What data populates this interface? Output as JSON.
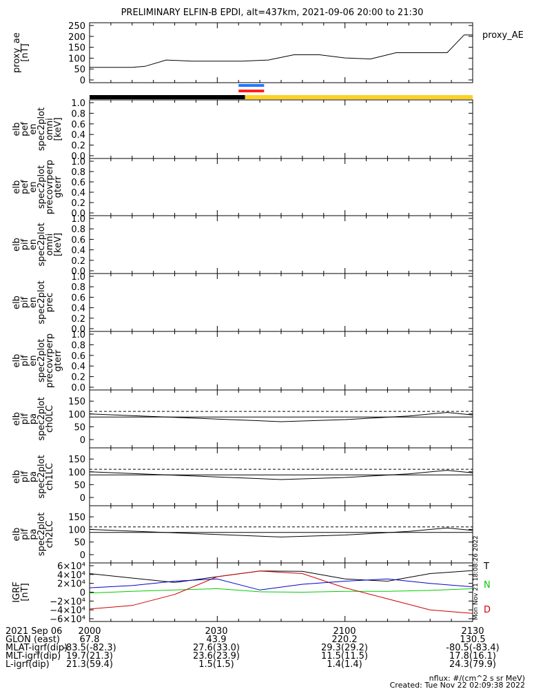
{
  "title": "PRELIMINARY ELFIN-B EPDI, alt=437km, 2021-09-06 20:00 to 21:30",
  "colors": {
    "black": "#000000",
    "sun": "#ffd21e",
    "blue_bar": "#1e78ff",
    "red_bar": "#ff1e1e",
    "grf_t": "#000000",
    "grf_n": "#00cc00",
    "grf_d": "#cc0000",
    "grf_e": "#0000cc"
  },
  "panels": [
    {
      "id": "proxy_ae",
      "ylabel_lines": [
        "proxy_ae",
        "[nT]"
      ],
      "yticks": [
        "250",
        "200",
        "150",
        "100",
        "50",
        "0"
      ],
      "legend": "proxy_AE"
    },
    {
      "id": "pef_en",
      "ylabel_lines": [
        "elb",
        "pef",
        "en",
        "spec2plot",
        "omni",
        "[keV]"
      ],
      "yticks": [
        "1.0",
        "0.8",
        "0.6",
        "0.4",
        "0.2",
        "0.0"
      ]
    },
    {
      "id": "pef_prec",
      "ylabel_lines": [
        "elb",
        "pef",
        "en",
        "spec2plot",
        "precovrperp",
        "gterr"
      ],
      "yticks": [
        "1.0",
        "0.8",
        "0.6",
        "0.4",
        "0.2",
        "0.0"
      ]
    },
    {
      "id": "pif_en",
      "ylabel_lines": [
        "elb",
        "pif",
        "en",
        "spec2plot",
        "omni",
        "[keV]"
      ],
      "yticks": [
        "1.0",
        "0.8",
        "0.6",
        "0.4",
        "0.2",
        "0.0"
      ]
    },
    {
      "id": "pif_prec",
      "ylabel_lines": [
        "elb",
        "pif",
        "en",
        "spec2plot",
        "prec"
      ],
      "yticks": [
        "1.0",
        "0.8",
        "0.6",
        "0.4",
        "0.2",
        "0.0"
      ]
    },
    {
      "id": "pif_precovr",
      "ylabel_lines": [
        "elb",
        "pif",
        "en",
        "spec2plot",
        "precovrperp",
        "gterr"
      ],
      "yticks": [
        "1.0",
        "0.8",
        "0.6",
        "0.4",
        "0.2",
        "0.0"
      ]
    },
    {
      "id": "ch0lc",
      "ylabel_lines": [
        "elb",
        "pif",
        "pa",
        "spec2plot",
        "ch0LC"
      ],
      "yticks": [
        "150",
        "100",
        "50",
        "0"
      ]
    },
    {
      "id": "ch1lc",
      "ylabel_lines": [
        "elb",
        "pif",
        "pa",
        "spec2plot",
        "ch1LC"
      ],
      "yticks": [
        "150",
        "100",
        "50",
        "0"
      ]
    },
    {
      "id": "ch2lc",
      "ylabel_lines": [
        "elb",
        "pif",
        "pa",
        "spec2plot",
        "ch2LC"
      ],
      "yticks": [
        "150",
        "100",
        "50",
        "0"
      ]
    },
    {
      "id": "igrf",
      "ylabel_lines": [
        "IGRF",
        "[nT]"
      ],
      "yticks": [
        "6×10⁴",
        "4×10⁴",
        "2×10⁴",
        "0",
        "−2×10⁴",
        "−4×10⁴",
        "−6×10⁴"
      ],
      "legend": [
        "T",
        "N",
        "D"
      ]
    }
  ],
  "chart_data": [
    {
      "type": "line",
      "name": "proxy_ae",
      "x": [
        0,
        10,
        13,
        18,
        24,
        30,
        36,
        42,
        48,
        54,
        60,
        66,
        72,
        78,
        84,
        88,
        90
      ],
      "values": [
        60,
        60,
        65,
        95,
        90,
        90,
        90,
        95,
        120,
        120,
        105,
        100,
        130,
        130,
        130,
        215,
        215
      ],
      "ylim": [
        0,
        260
      ],
      "xlim": [
        0,
        90
      ]
    },
    {
      "type": "line",
      "name": "pa_loss_cone",
      "x": [
        0,
        15,
        30,
        45,
        60,
        75,
        84,
        90
      ],
      "series": [
        {
          "values": [
            100,
            90,
            80,
            70,
            78,
            92,
            106,
            96
          ]
        },
        {
          "values": [
            110,
            110,
            110,
            110,
            110,
            110,
            110,
            110
          ]
        },
        {
          "values": [
            88,
            88,
            88,
            88,
            88,
            88,
            88,
            88
          ]
        }
      ],
      "ylim": [
        0,
        180
      ]
    },
    {
      "type": "line",
      "name": "igrf",
      "x": [
        0,
        10,
        20,
        30,
        40,
        50,
        60,
        70,
        80,
        90
      ],
      "series": [
        {
          "name": "T",
          "values": [
            42000,
            32000,
            22000,
            35000,
            48000,
            47000,
            30000,
            25000,
            42000,
            49000
          ]
        },
        {
          "name": "N",
          "values": [
            -2000,
            2000,
            5000,
            8000,
            1000,
            0,
            2000,
            2000,
            4000,
            8000
          ]
        },
        {
          "name": "D",
          "values": [
            -38000,
            -30000,
            -5000,
            35000,
            48000,
            42000,
            10000,
            -15000,
            -40000,
            -48000
          ]
        },
        {
          "name": "E",
          "values": [
            10000,
            15000,
            25000,
            30000,
            5000,
            18000,
            25000,
            30000,
            20000,
            12000
          ]
        }
      ],
      "ylim": [
        -60000,
        60000
      ]
    }
  ],
  "time_bar": {
    "segments": [
      {
        "from": 0,
        "to": 36.5,
        "color": "black"
      },
      {
        "from": 36.5,
        "to": 90,
        "color": "sun"
      }
    ],
    "extra_markers": [
      {
        "from": 35,
        "to": 41,
        "color": "blue_bar"
      },
      {
        "from": 35,
        "to": 41,
        "color": "red_bar"
      }
    ]
  },
  "x_axis": {
    "rows": [
      {
        "label": "2021 Sep 06",
        "vals": [
          "2000",
          "2030",
          "2100",
          "2130"
        ]
      },
      {
        "label": "GLON (east)",
        "vals": [
          "67.8",
          "43.9",
          "220.2",
          "130.5"
        ]
      },
      {
        "label": "MLAT-igrf(dip)",
        "vals": [
          "-83.5(-82.3)",
          "27.6(33.0)",
          "29.3(29.2)",
          "-80.5(-83.4)"
        ]
      },
      {
        "label": "MLT-igrf(dip)",
        "vals": [
          "19.7(21.3)",
          "23.6(23.9)",
          "11.5(11.5)",
          "17.8(16.1)"
        ]
      },
      {
        "label": "L-igrf(dip)",
        "vals": [
          "21.3(59.4)",
          "1.5(1.5)",
          "1.4(1.4)",
          "24.3(79.9)"
        ]
      }
    ]
  },
  "footer": {
    "units": "nflux: #/(cm^2 s sr MeV)",
    "created": "Created: Tue Nov 22 02:09:38 2022",
    "side_stamp": "Mon Nov 21 18:08:26 2022"
  }
}
